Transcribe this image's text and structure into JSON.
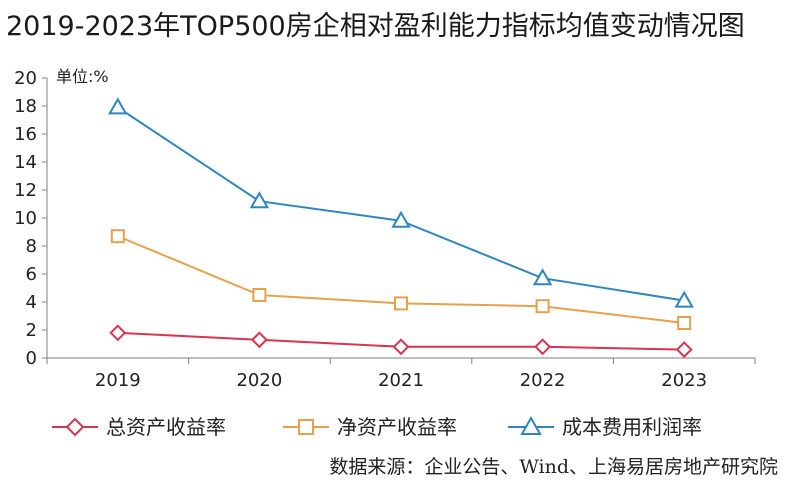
{
  "chart_data": {
    "type": "line",
    "title": "2019-2023年TOP500房企相对盈利能力指标均值变动情况图",
    "unit_label": "单位:%",
    "source": "数据来源：企业公告、Wind、上海易居房地产研究院",
    "categories": [
      "2019",
      "2020",
      "2021",
      "2022",
      "2023"
    ],
    "ylim": [
      0,
      20
    ],
    "yticks": [
      "0",
      "2",
      "4",
      "6",
      "8",
      "10",
      "12",
      "14",
      "16",
      "18",
      "20"
    ],
    "grid": false,
    "legend_position": "bottom",
    "series": [
      {
        "name": "总资产收益率",
        "values": [
          1.8,
          1.3,
          0.8,
          0.8,
          0.6
        ],
        "color": "#d9344f",
        "marker": "diamond"
      },
      {
        "name": "净资产收益率",
        "values": [
          8.7,
          4.5,
          3.9,
          3.7,
          2.5
        ],
        "color": "#e8a04a",
        "marker": "square"
      },
      {
        "name": "成本费用利润率",
        "values": [
          17.9,
          11.2,
          9.8,
          5.7,
          4.1
        ],
        "color": "#2f86bf",
        "marker": "triangle"
      }
    ]
  }
}
